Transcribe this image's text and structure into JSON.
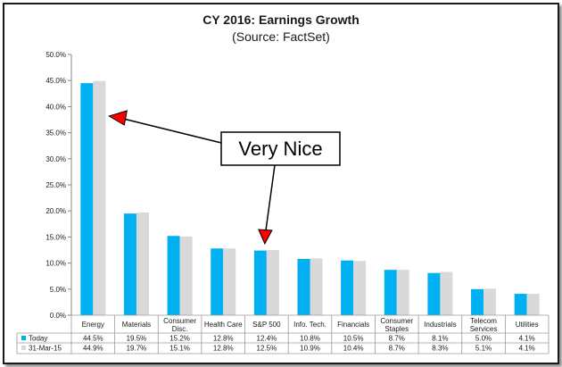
{
  "chart_data": {
    "type": "bar",
    "title": "CY 2016: Earnings Growth",
    "subtitle": "(Source: FactSet)",
    "categories": [
      "Energy",
      "Materials",
      "Consumer Disc.",
      "Health Care",
      "S&P 500",
      "Info. Tech.",
      "Financials",
      "Consumer Staples",
      "Industrials",
      "Telecom Services",
      "Utilities"
    ],
    "category_lines": [
      [
        "Energy"
      ],
      [
        "Materials"
      ],
      [
        "Consumer",
        "Disc."
      ],
      [
        "Health Care"
      ],
      [
        "S&P 500"
      ],
      [
        "Info. Tech."
      ],
      [
        "Financials"
      ],
      [
        "Consumer",
        "Staples"
      ],
      [
        "Industrials"
      ],
      [
        "Telecom",
        "Services"
      ],
      [
        "Utilities"
      ]
    ],
    "series": [
      {
        "name": "Today",
        "color": "#00B0F0",
        "values": [
          44.5,
          19.5,
          15.2,
          12.8,
          12.4,
          10.8,
          10.5,
          8.7,
          8.1,
          5.0,
          4.1
        ],
        "labels": [
          "44.5%",
          "19.5%",
          "15.2%",
          "12.8%",
          "12.4%",
          "10.8%",
          "10.5%",
          "8.7%",
          "8.1%",
          "5.0%",
          "4.1%"
        ]
      },
      {
        "name": "31-Mar-15",
        "color": "#D9D9D9",
        "values": [
          44.9,
          19.7,
          15.1,
          12.8,
          12.5,
          10.9,
          10.4,
          8.7,
          8.3,
          5.1,
          4.1
        ],
        "labels": [
          "44.9%",
          "19.7%",
          "15.1%",
          "12.8%",
          "12.5%",
          "10.9%",
          "10.4%",
          "8.7%",
          "8.3%",
          "5.1%",
          "4.1%"
        ]
      }
    ],
    "ylim": [
      0,
      50
    ],
    "yticks": [
      0,
      5,
      10,
      15,
      20,
      25,
      30,
      35,
      40,
      45,
      50
    ],
    "ytick_labels": [
      "0.0%",
      "5.0%",
      "10.0%",
      "15.0%",
      "20.0%",
      "25.0%",
      "30.0%",
      "35.0%",
      "40.0%",
      "45.0%",
      "50.0%"
    ],
    "grid": false,
    "legend": "data-table",
    "annotation": {
      "text": "Very Nice",
      "arrow_targets": [
        "Energy",
        "S&P 500"
      ],
      "arrow_color": "#FF0000"
    }
  }
}
